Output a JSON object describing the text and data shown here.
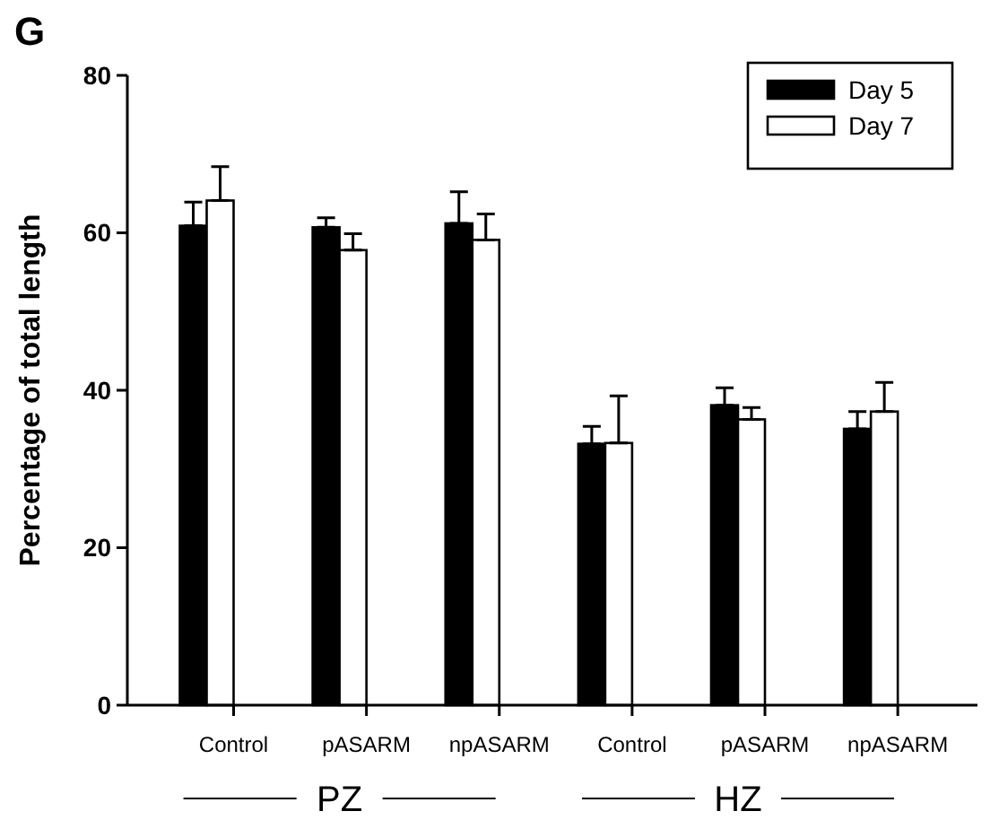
{
  "chart_data": {
    "type": "bar",
    "ylabel": "Percentage of total length",
    "categories": [
      "Control",
      "pASARM",
      "npASARM",
      "Control",
      "pASARM",
      "npASARM"
    ],
    "series": [
      {
        "name": "Day 5",
        "color": "#000000",
        "values": [
          60.9,
          60.7,
          61.2,
          33.2,
          38.1,
          35.1
        ],
        "errors": [
          [
            60.9,
            63.9
          ],
          [
            60.7,
            61.9
          ],
          [
            61.2,
            65.2
          ],
          [
            33.2,
            35.4
          ],
          [
            38.1,
            40.3
          ],
          [
            35.1,
            37.3
          ]
        ]
      },
      {
        "name": "Day 7",
        "color": "#ffffff",
        "values": [
          64.1,
          57.8,
          59.1,
          33.3,
          36.3,
          37.3
        ],
        "errors": [
          [
            64.1,
            68.4
          ],
          [
            57.8,
            59.9
          ],
          [
            59.1,
            62.4
          ],
          [
            33.3,
            39.3
          ],
          [
            36.3,
            37.8
          ],
          [
            37.3,
            41.0
          ]
        ]
      }
    ],
    "ylim": [
      0,
      80
    ],
    "yticks": [
      0,
      20,
      40,
      60,
      80
    ],
    "grid": false,
    "legend": "top right",
    "annotations": [
      "G",
      "PZ",
      "HZ"
    ]
  }
}
